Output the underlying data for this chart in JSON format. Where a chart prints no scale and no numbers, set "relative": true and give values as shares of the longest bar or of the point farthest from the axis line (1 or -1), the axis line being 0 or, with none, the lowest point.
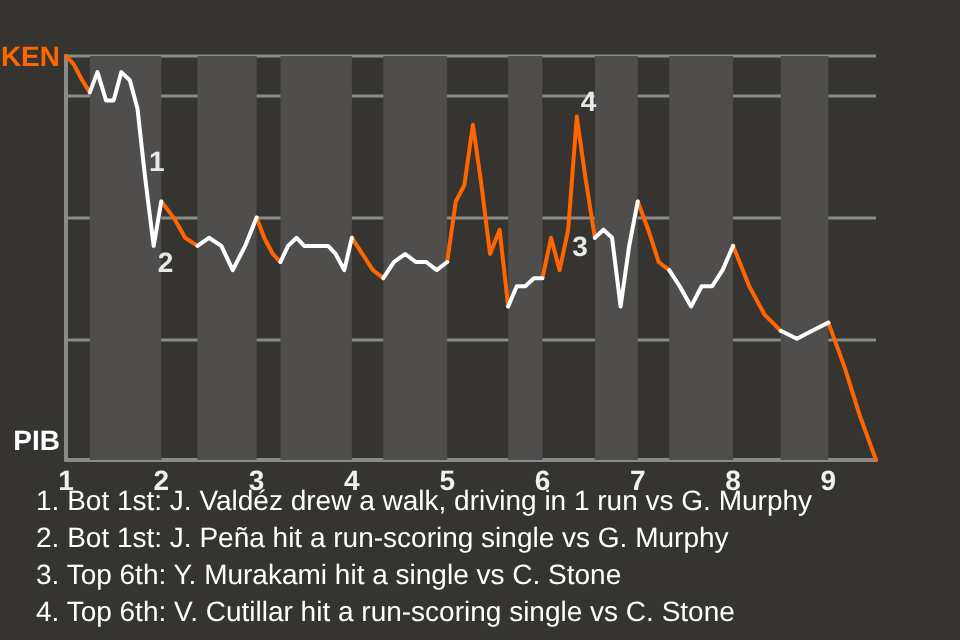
{
  "chart_data": {
    "type": "line",
    "relative": true,
    "x": [
      1,
      1.08,
      1.17,
      1.25,
      1.33,
      1.42,
      1.5,
      1.58,
      1.67,
      1.75,
      1.83,
      1.92,
      2,
      2.13,
      2.25,
      2.38,
      2.5,
      2.63,
      2.75,
      2.88,
      3,
      3.08,
      3.17,
      3.25,
      3.33,
      3.42,
      3.5,
      3.58,
      3.67,
      3.75,
      3.83,
      3.92,
      4,
      4.11,
      4.22,
      4.33,
      4.44,
      4.56,
      4.67,
      4.78,
      4.89,
      5,
      5.09,
      5.18,
      5.27,
      5.36,
      5.45,
      5.55,
      5.64,
      5.73,
      5.82,
      5.91,
      6,
      6.09,
      6.18,
      6.27,
      6.36,
      6.45,
      6.55,
      6.64,
      6.73,
      6.82,
      6.91,
      7,
      7.11,
      7.22,
      7.33,
      7.44,
      7.56,
      7.67,
      7.78,
      7.89,
      8,
      8.17,
      8.33,
      8.5,
      8.67,
      8.83,
      9,
      9.17,
      9.33,
      9.5
    ],
    "series": [
      {
        "name": "KEN",
        "color": "#ff6600",
        "values": [
          1,
          0.98,
          0.94,
          0.91,
          null,
          null,
          null,
          null,
          null,
          null,
          null,
          null,
          0.64,
          0.6,
          0.55,
          0.53,
          null,
          null,
          null,
          null,
          0.6,
          0.55,
          0.51,
          0.49,
          null,
          null,
          null,
          null,
          null,
          null,
          null,
          null,
          0.55,
          0.51,
          0.47,
          0.45,
          null,
          null,
          null,
          null,
          null,
          0.49,
          0.64,
          0.68,
          0.83,
          0.68,
          0.51,
          0.57,
          0.38,
          null,
          null,
          null,
          0.45,
          0.55,
          0.47,
          0.57,
          0.85,
          0.7,
          0.55,
          null,
          null,
          null,
          null,
          0.64,
          0.57,
          0.49,
          0.47,
          null,
          null,
          null,
          null,
          null,
          0.53,
          0.43,
          0.36,
          0.32,
          null,
          null,
          0.34,
          0.23,
          0.11,
          0
        ]
      },
      {
        "name": "PIB",
        "color": "#ffffff",
        "values": [
          null,
          null,
          null,
          0.91,
          0.96,
          0.89,
          0.89,
          0.96,
          0.94,
          0.87,
          0.7,
          0.53,
          0.64,
          null,
          null,
          0.53,
          0.55,
          0.53,
          0.47,
          0.53,
          0.6,
          null,
          null,
          0.49,
          0.53,
          0.55,
          0.53,
          0.53,
          0.53,
          0.53,
          0.51,
          0.47,
          0.55,
          null,
          null,
          0.45,
          0.49,
          0.51,
          0.49,
          0.49,
          0.47,
          0.49,
          null,
          null,
          null,
          null,
          null,
          null,
          0.38,
          0.43,
          0.43,
          0.45,
          0.45,
          null,
          null,
          null,
          null,
          null,
          0.55,
          0.57,
          0.55,
          0.38,
          0.53,
          0.64,
          null,
          null,
          0.47,
          0.43,
          0.38,
          0.43,
          0.43,
          0.47,
          0.53,
          null,
          null,
          0.32,
          0.3,
          0.32,
          0.34,
          null,
          null,
          null
        ]
      }
    ],
    "xlim": [
      1,
      9.5
    ],
    "xticks": [
      1,
      2,
      3,
      4,
      5,
      6,
      7,
      8,
      9
    ],
    "grid": "y",
    "legend": "left",
    "marker": "none",
    "line_style": "solid",
    "bands": [
      {
        "axis": "x",
        "from": 1.25,
        "to": 2,
        "color": "#4f4e4c"
      },
      {
        "axis": "x",
        "from": 2.38,
        "to": 3,
        "color": "#4f4e4c"
      },
      {
        "axis": "x",
        "from": 3.25,
        "to": 4,
        "color": "#4f4e4c"
      },
      {
        "axis": "x",
        "from": 4.33,
        "to": 5,
        "color": "#4f4e4c"
      },
      {
        "axis": "x",
        "from": 5.64,
        "to": 6,
        "color": "#4f4e4c"
      },
      {
        "axis": "x",
        "from": 6.55,
        "to": 7,
        "color": "#4f4e4c"
      },
      {
        "axis": "x",
        "from": 7.33,
        "to": 8,
        "color": "#4f4e4c"
      },
      {
        "axis": "x",
        "from": 8.5,
        "to": 9,
        "color": "#4f4e4c"
      }
    ],
    "annotations": [
      {
        "text": "1",
        "x": 1.83,
        "y": 0.7
      },
      {
        "text": "2",
        "x": 1.92,
        "y": 0.53
      },
      {
        "text": "3",
        "x": 6.27,
        "y": 0.57
      },
      {
        "text": "4",
        "x": 6.36,
        "y": 0.85
      },
      "1. Bot 1st: J. Valdéz drew a walk, driving in 1 run vs G. Murphy",
      "2. Bot 1st: J. Peña hit a run-scoring single vs G. Murphy",
      "3. Top 6th: Y. Murakami hit a single vs C. Stone",
      "4. Top 6th: V. Cutillar hit a run-scoring single vs C. Stone"
    ]
  }
}
